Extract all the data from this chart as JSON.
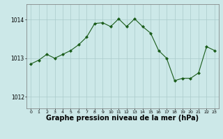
{
  "x": [
    0,
    1,
    2,
    3,
    4,
    5,
    6,
    7,
    8,
    9,
    10,
    11,
    12,
    13,
    14,
    15,
    16,
    17,
    18,
    19,
    20,
    21,
    22,
    23
  ],
  "y": [
    1012.85,
    1012.95,
    1013.1,
    1013.0,
    1013.1,
    1013.2,
    1013.35,
    1013.55,
    1013.9,
    1013.92,
    1013.82,
    1014.02,
    1013.82,
    1014.02,
    1013.82,
    1013.65,
    1013.2,
    1013.0,
    1012.42,
    1012.48,
    1012.48,
    1012.62,
    1013.3,
    1013.2
  ],
  "line_color": "#1a5c1a",
  "marker": "D",
  "marker_size": 2,
  "bg_color": "#cce8e8",
  "grid_color": "#aacaca",
  "xlabel": "Graphe pression niveau de la mer (hPa)",
  "xlabel_fontsize": 7,
  "xlabel_bold": true,
  "yticks": [
    1012,
    1013,
    1014
  ],
  "ylim": [
    1011.7,
    1014.4
  ],
  "xlim": [
    -0.5,
    23.5
  ],
  "xticks": [
    0,
    1,
    2,
    3,
    4,
    5,
    6,
    7,
    8,
    9,
    10,
    11,
    12,
    13,
    14,
    15,
    16,
    17,
    18,
    19,
    20,
    21,
    22,
    23
  ]
}
